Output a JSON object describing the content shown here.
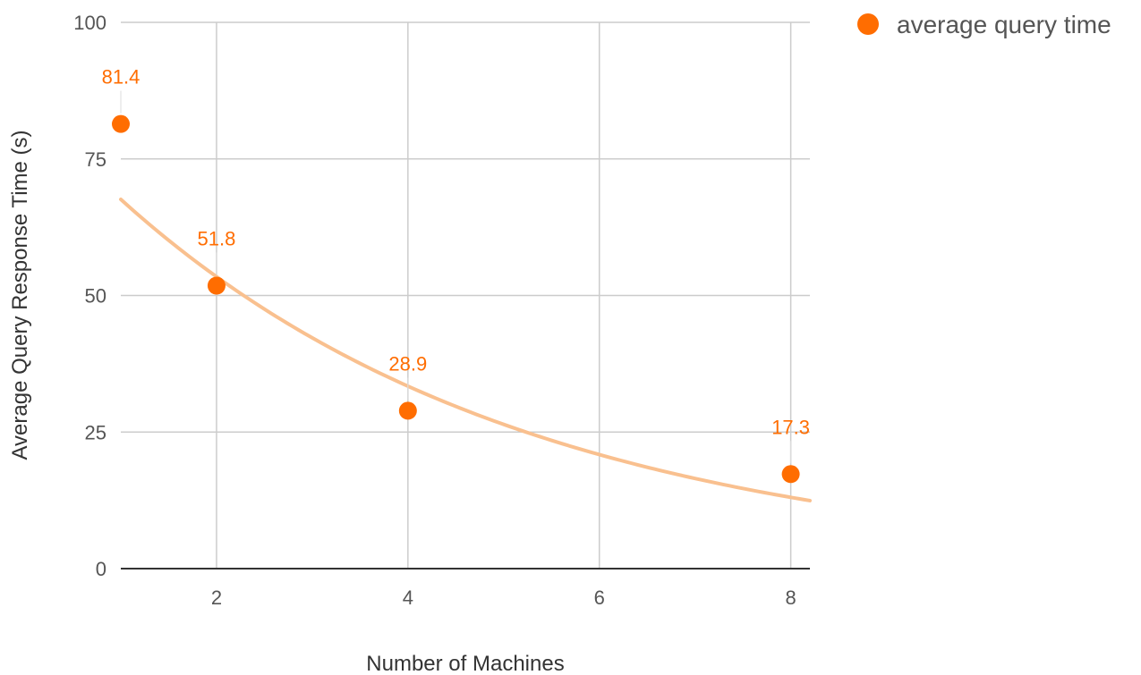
{
  "chart_data": {
    "type": "scatter",
    "title": "",
    "xlabel": "Number of Machines",
    "ylabel": "Average Query Response Time (s)",
    "xlim": [
      1,
      8.2
    ],
    "ylim": [
      0,
      100
    ],
    "x_ticks": [
      2,
      4,
      6,
      8
    ],
    "y_ticks": [
      0,
      25,
      50,
      75,
      100
    ],
    "grid": true,
    "legend_position": "top-right",
    "series": [
      {
        "name": "average query time",
        "color": "#ff6d01",
        "x": [
          1,
          2,
          4,
          8
        ],
        "y": [
          81.4,
          51.8,
          28.9,
          17.3
        ],
        "labels": [
          "81.4",
          "51.8",
          "28.9",
          "17.3"
        ]
      }
    ],
    "trendline": {
      "type": "exponential",
      "color": "#f9c08f",
      "a": 85.5,
      "b": -0.235
    }
  }
}
